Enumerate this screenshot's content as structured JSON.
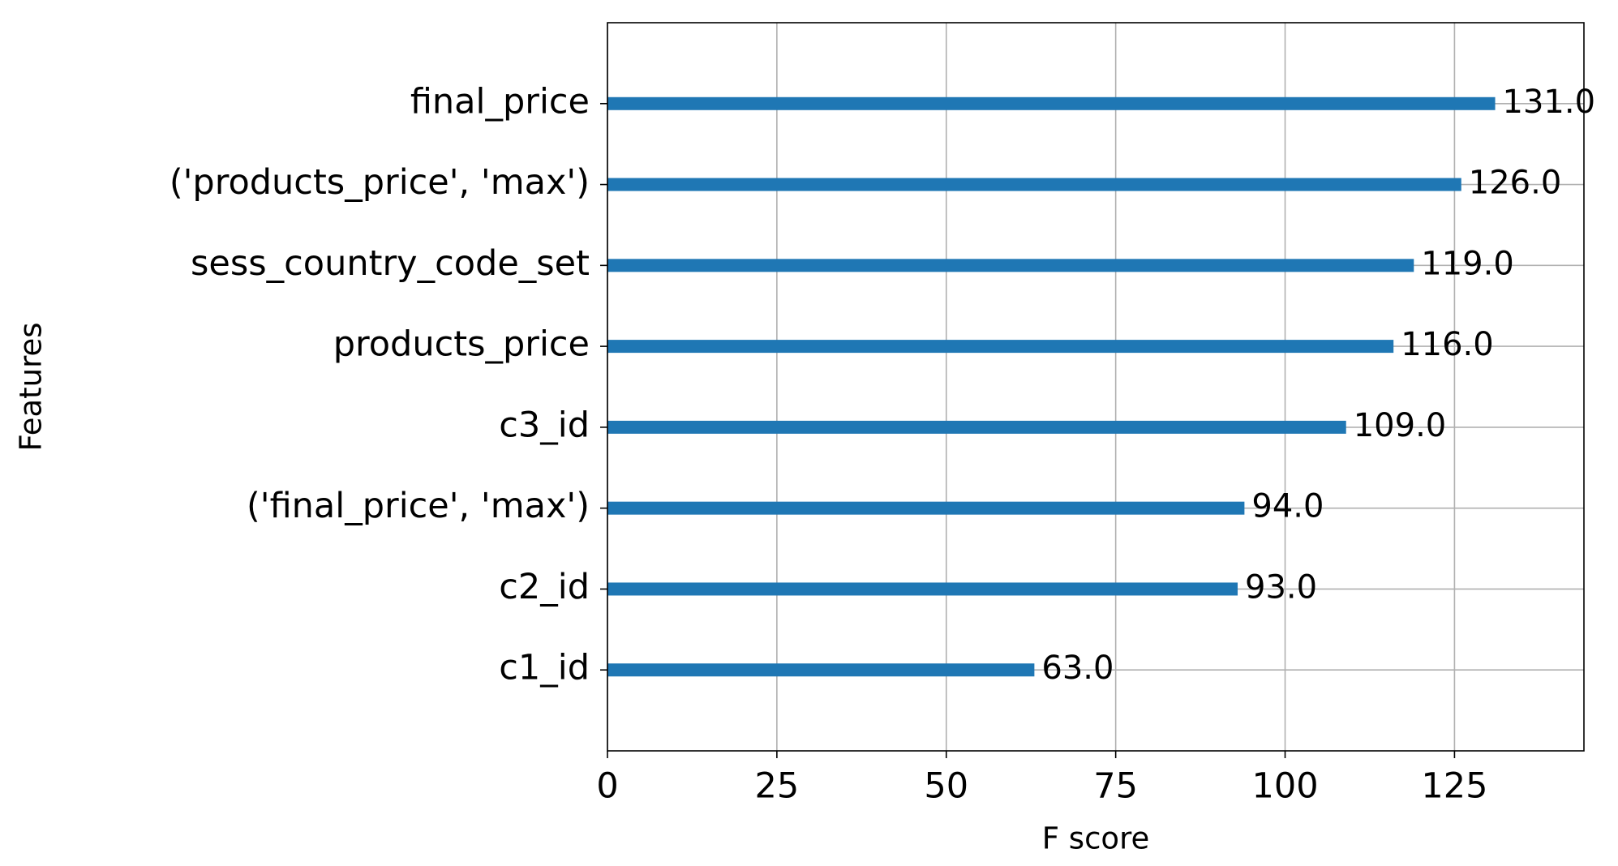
{
  "chart_data": {
    "type": "bar",
    "orientation": "horizontal",
    "categories": [
      "final_price",
      "('products_price', 'max')",
      "sess_country_code_set",
      "products_price",
      "c3_id",
      "('final_price', 'max')",
      "c2_id",
      "c1_id"
    ],
    "values": [
      131,
      126,
      119,
      116,
      109,
      94,
      93,
      63
    ],
    "value_labels": [
      "131.0",
      "126.0",
      "119.0",
      "116.0",
      "109.0",
      "94.0",
      "93.0",
      "63.0"
    ],
    "color": "#1f77b4",
    "x_label": "F score",
    "y_label": "Features",
    "xlim": [
      0,
      144.1
    ],
    "xticks": [
      0,
      25,
      50,
      75,
      100,
      125
    ],
    "grid": true
  }
}
